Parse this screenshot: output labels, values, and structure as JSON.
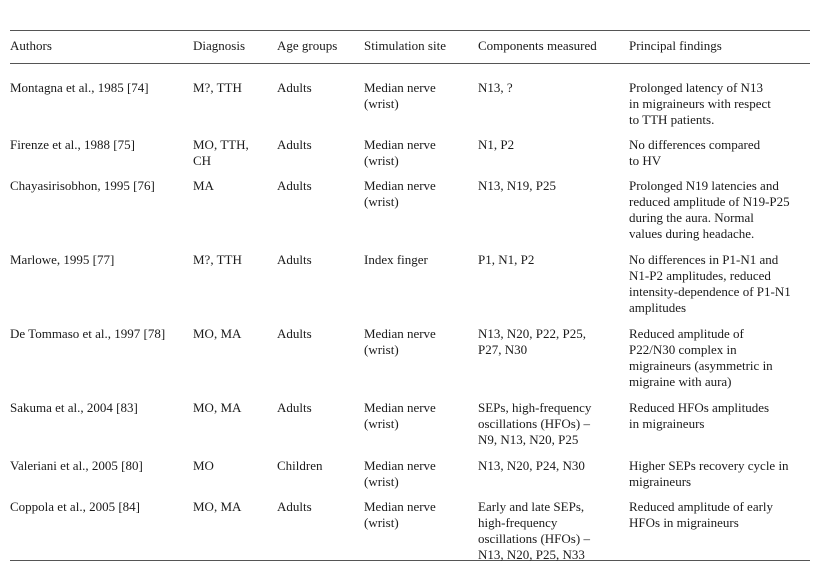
{
  "headers": [
    "Authors",
    "Diagnosis",
    "Age groups",
    "Stimulation site",
    "Components measured",
    "Principal findings"
  ],
  "rows": [
    {
      "authors": "Montagna et al., 1985 [74]",
      "diagnosis": "M?, TTH",
      "age": "Adults",
      "site": "Median nerve\n(wrist)",
      "components": "N13, ?",
      "findings": "Prolonged latency of N13\nin migraineurs with respect\nto TTH patients."
    },
    {
      "authors": "Firenze et al., 1988 [75]",
      "diagnosis": "MO, TTH,\nCH",
      "age": "Adults",
      "site": "Median nerve\n(wrist)",
      "components": "N1, P2",
      "findings": "No differences compared\nto HV"
    },
    {
      "authors": "Chayasirisobhon, 1995 [76]",
      "diagnosis": "MA",
      "age": "Adults",
      "site": "Median nerve\n(wrist)",
      "components": "N13, N19, P25",
      "findings": "Prolonged N19 latencies and\nreduced amplitude of N19-P25\nduring the aura. Normal\nvalues during headache."
    },
    {
      "authors": "Marlowe, 1995 [77]",
      "diagnosis": "M?, TTH",
      "age": "Adults",
      "site": "Index finger",
      "components": "P1, N1, P2",
      "findings": "No differences in P1-N1 and\nN1-P2 amplitudes, reduced\nintensity-dependence of P1-N1\namplitudes"
    },
    {
      "authors": "De Tommaso et al., 1997 [78]",
      "diagnosis": "MO, MA",
      "age": "Adults",
      "site": "Median nerve\n(wrist)",
      "components": "N13, N20, P22, P25,\nP27, N30",
      "findings": "Reduced amplitude of\nP22/N30 complex in\nmigraineurs (asymmetric in\nmigraine with aura)"
    },
    {
      "authors": "Sakuma et al., 2004 [83]",
      "diagnosis": "MO, MA",
      "age": "Adults",
      "site": "Median nerve\n(wrist)",
      "components": "SEPs, high-frequency\noscillations (HFOs) –\nN9, N13, N20, P25",
      "findings": "Reduced HFOs amplitudes\nin migraineurs"
    },
    {
      "authors": "Valeriani et al., 2005 [80]",
      "diagnosis": "MO",
      "age": "Children",
      "site": "Median nerve\n(wrist)",
      "components": "N13, N20, P24, N30",
      "findings": "Higher SEPs recovery cycle in\nmigraineurs"
    },
    {
      "authors": "Coppola et al., 2005 [84]",
      "diagnosis": "MO, MA",
      "age": "Adults",
      "site": "Median nerve\n(wrist)",
      "components": "Early and late SEPs,\nhigh-frequency\noscillations (HFOs) –\nN13, N20, P25, N33",
      "findings": "Reduced amplitude of early\nHFOs in migraineurs"
    }
  ]
}
